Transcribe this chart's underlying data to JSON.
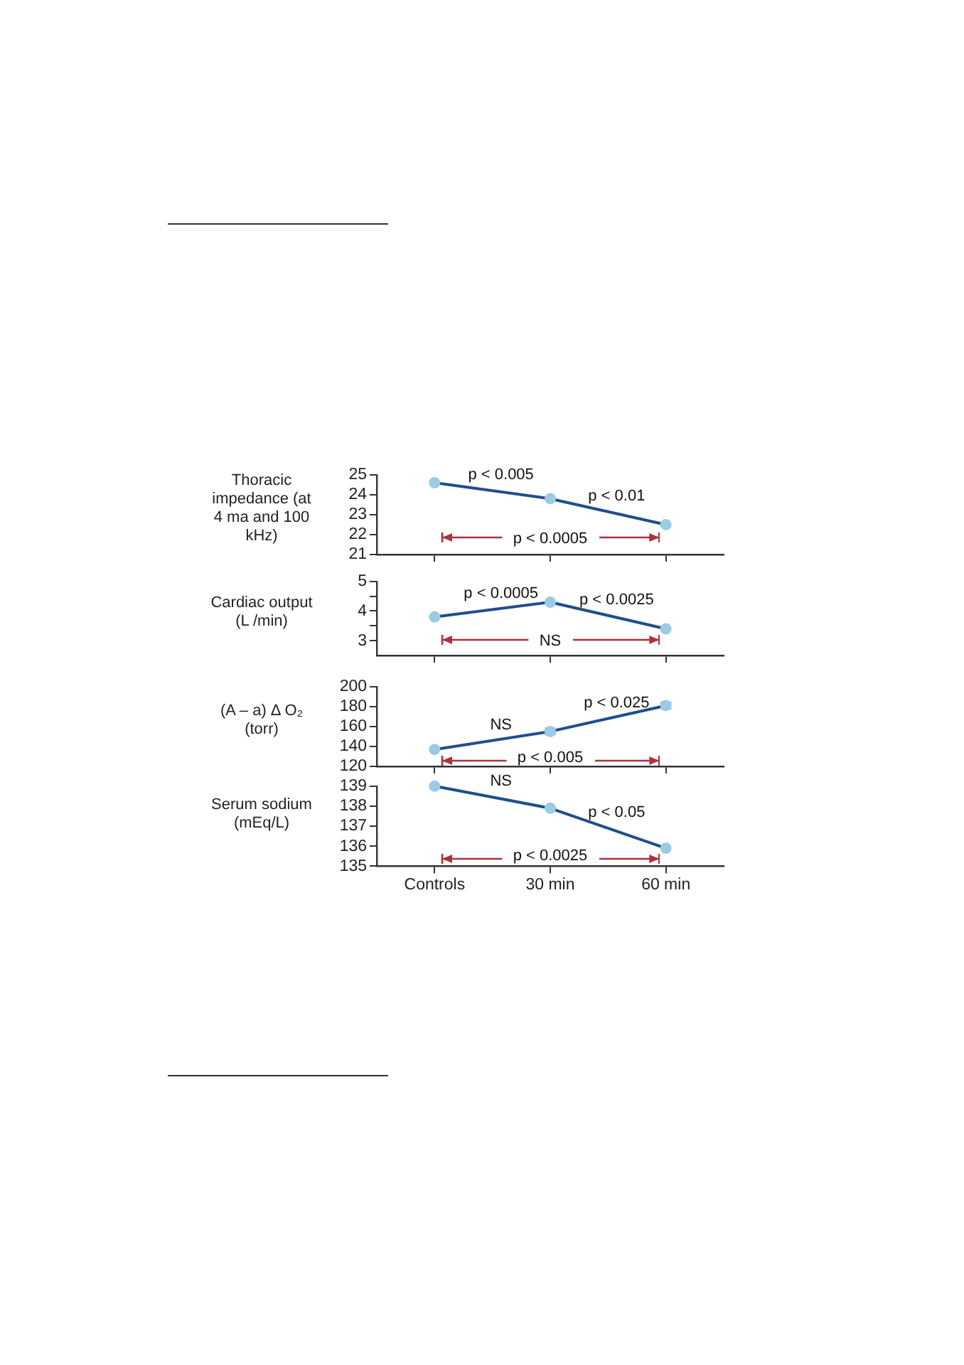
{
  "chart_data": [
    {
      "type": "line",
      "categories": [
        null,
        null,
        null
      ],
      "ylabel": "Thoracic impedance (at 4 ma and 100 kHz)",
      "marker": "circle",
      "tick_labels": "y",
      "series": [
        {
          "color": "#1f4e8c",
          "colors": [
            "#9ccbe3",
            "#9ccbe3",
            "#9ccbe3"
          ],
          "values": [
            24.6,
            23.8,
            22.5
          ]
        }
      ],
      "ylim": [
        21,
        25
      ],
      "yticks": [
        21,
        22,
        23,
        24,
        25
      ],
      "annotations": [
        "p < 0.005",
        "p < 0.01",
        "p < 0.0005"
      ]
    },
    {
      "type": "line",
      "categories": [
        null,
        null,
        null
      ],
      "ylabel": "Cardiac output (L /min)",
      "marker": "circle",
      "tick_labels": "y",
      "series": [
        {
          "color": "#1f4e8c",
          "colors": [
            "#9ccbe3",
            "#9ccbe3",
            "#9ccbe3"
          ],
          "values": [
            3.8,
            4.3,
            3.4
          ]
        }
      ],
      "ylim": [
        2.5,
        5
      ],
      "yticks": [
        3,
        {
          "value": 3.5,
          "label": null
        },
        4,
        {
          "value": 4.5,
          "label": null
        },
        5
      ],
      "annotations": [
        "p < 0.0005",
        "p < 0.0025",
        "NS"
      ]
    },
    {
      "type": "line",
      "categories": [
        null,
        null,
        null
      ],
      "ylabel": "(A – a) Δ O₂ (torr)",
      "marker": "circle",
      "tick_labels": "y",
      "series": [
        {
          "color": "#1f4e8c",
          "colors": [
            "#9ccbe3",
            "#9ccbe3",
            "#9ccbe3"
          ],
          "values": [
            137,
            155,
            181
          ],
          "errors": [
            null,
            3,
            3
          ]
        }
      ],
      "ylim": [
        120,
        200
      ],
      "yticks": [
        120,
        140,
        160,
        180,
        200
      ],
      "annotations": [
        "NS",
        "p < 0.025",
        "p < 0.005"
      ]
    },
    {
      "type": "line",
      "categories": [
        "Controls",
        "30 min",
        "60 min"
      ],
      "ylabel": "Serum sodium (mEq/L)",
      "marker": "circle",
      "series": [
        {
          "color": "#1f4e8c",
          "colors": [
            "#9ccbe3",
            "#9ccbe3",
            "#9ccbe3"
          ],
          "values": [
            139,
            137.9,
            135.9
          ]
        }
      ],
      "ylim": [
        135,
        139
      ],
      "yticks": [
        135,
        136,
        137,
        138,
        139
      ],
      "annotations": [
        "NS",
        "p < 0.05",
        "p < 0.0025"
      ]
    }
  ]
}
